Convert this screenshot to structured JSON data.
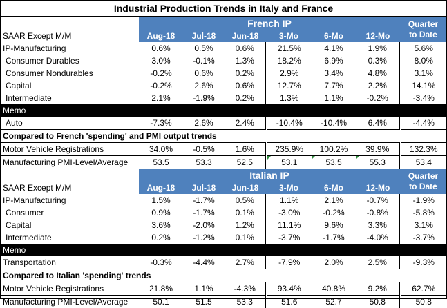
{
  "title": "Industrial Production Trends in Italy and France",
  "french": {
    "band_label": "French IP",
    "quarter_label_1": "Quarter",
    "quarter_label_2": "to Date",
    "header_label": "SAAR Except M/M",
    "columns": [
      "Aug-18",
      "Jul-18",
      "Jun-18",
      "3-Mo",
      "6-Mo",
      "12-Mo"
    ],
    "rows": [
      {
        "label": "IP-Manufacturing",
        "values": [
          "0.6%",
          "0.5%",
          "0.6%",
          "21.5%",
          "4.1%",
          "1.9%",
          "5.6%"
        ]
      },
      {
        "label": "Consumer Durables",
        "values": [
          "3.0%",
          "-0.1%",
          "1.3%",
          "18.2%",
          "6.9%",
          "0.3%",
          "8.0%"
        ]
      },
      {
        "label": "Consumer Nondurables",
        "values": [
          "-0.2%",
          "0.6%",
          "0.2%",
          "2.9%",
          "3.4%",
          "4.8%",
          "3.1%"
        ]
      },
      {
        "label": "Capital",
        "values": [
          "-0.2%",
          "2.6%",
          "0.6%",
          "12.7%",
          "7.7%",
          "2.2%",
          "14.1%"
        ]
      },
      {
        "label": "Intermediate",
        "values": [
          "2.1%",
          "-1.9%",
          "0.2%",
          "1.3%",
          "1.1%",
          "-0.2%",
          "-3.4%"
        ]
      }
    ],
    "memo_label": "Memo",
    "memo_rows": [
      {
        "label": "Auto",
        "values": [
          "-7.3%",
          "2.6%",
          "2.4%",
          "-10.4%",
          "-10.4%",
          "6.4%",
          "-4.4%"
        ]
      }
    ],
    "compare_label": "Compared to French 'spending' and PMI output trends",
    "compare_rows": [
      {
        "label": "Motor Vehicle Registrations",
        "values": [
          "34.0%",
          "-0.5%",
          "1.6%",
          "235.9%",
          "100.2%",
          "39.9%",
          "132.3%"
        ]
      },
      {
        "label": "Manufacturing PMI-Level/Average",
        "values": [
          "53.5",
          "53.3",
          "52.5",
          "53.1",
          "53.5",
          "55.3",
          "53.4"
        ]
      }
    ]
  },
  "italian": {
    "band_label": "Italian IP",
    "quarter_label_1": "Quarter",
    "quarter_label_2": "to Date",
    "header_label": "SAAR Except M/M",
    "columns": [
      "Aug-18",
      "Jul-18",
      "Jun-18",
      "3-Mo",
      "6-Mo",
      "12-Mo"
    ],
    "rows": [
      {
        "label": "IP-Manufacturing",
        "values": [
          "1.5%",
          "-1.7%",
          "0.5%",
          "1.1%",
          "2.1%",
          "-0.7%",
          "-1.9%"
        ]
      },
      {
        "label": "Consumer",
        "values": [
          "0.9%",
          "-1.7%",
          "0.1%",
          "-3.0%",
          "-0.2%",
          "-0.8%",
          "-5.8%"
        ]
      },
      {
        "label": "Capital",
        "values": [
          "3.6%",
          "-2.0%",
          "1.2%",
          "11.1%",
          "9.6%",
          "3.3%",
          "3.1%"
        ]
      },
      {
        "label": "Intermediate",
        "values": [
          "0.2%",
          "-1.2%",
          "0.1%",
          "-3.7%",
          "-1.7%",
          "-4.0%",
          "-3.7%"
        ]
      }
    ],
    "memo_label": "Memo",
    "memo_rows": [
      {
        "label": "Transportation",
        "values": [
          "-0.3%",
          "-4.4%",
          "2.7%",
          "-7.9%",
          "2.0%",
          "2.5%",
          "-9.3%"
        ]
      }
    ],
    "compare_label": "Compared to Italian 'spending' trends",
    "compare_rows": [
      {
        "label": "Motor Vehicle Registrations",
        "values": [
          "21.8%",
          "1.1%",
          "-4.3%",
          "93.4%",
          "40.8%",
          "9.2%",
          "62.7%"
        ]
      },
      {
        "label": "Manufacturing PMI-Level/Average",
        "values": [
          "50.1",
          "51.5",
          "53.3",
          "51.6",
          "52.7",
          "50.8",
          "50.8"
        ]
      }
    ]
  },
  "colors": {
    "band_blue": "#4f81bd",
    "memo_black": "#000000",
    "marker_green": "#2e8b3d"
  }
}
